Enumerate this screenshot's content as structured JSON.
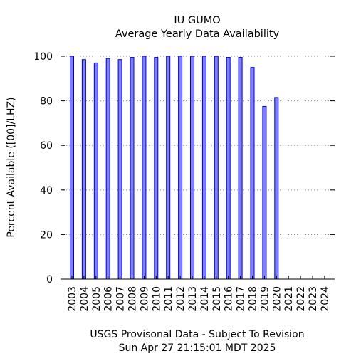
{
  "chart_data": {
    "type": "bar",
    "title": "IU GUMO",
    "subtitle": "Average Yearly Data Availability",
    "ylabel": "Percent Available ([00]/LHZ)",
    "xlabel": "",
    "footer": [
      "USGS Provisonal Data - Subject To Revision",
      "Sun Apr 27 21:15:01 MDT 2025"
    ],
    "categories": [
      "2003",
      "2004",
      "2005",
      "2006",
      "2007",
      "2008",
      "2009",
      "2010",
      "2011",
      "2012",
      "2013",
      "2014",
      "2015",
      "2016",
      "2017",
      "2018",
      "2019",
      "2020",
      "2021",
      "2022",
      "2023",
      "2024"
    ],
    "values": [
      100,
      98.5,
      97,
      99,
      98.5,
      99.5,
      100,
      99.5,
      100,
      100,
      100,
      100,
      100,
      99.5,
      99.5,
      95,
      77.5,
      81.5,
      0,
      0,
      0,
      0
    ],
    "ylim": [
      0,
      100
    ],
    "yticks": [
      0,
      20,
      40,
      60,
      80,
      100
    ],
    "grid": true,
    "colors": {
      "bar_fill": "#8080ff",
      "bar_stroke": "#0000cc",
      "grid": "#888888",
      "axis": "#000000"
    }
  }
}
